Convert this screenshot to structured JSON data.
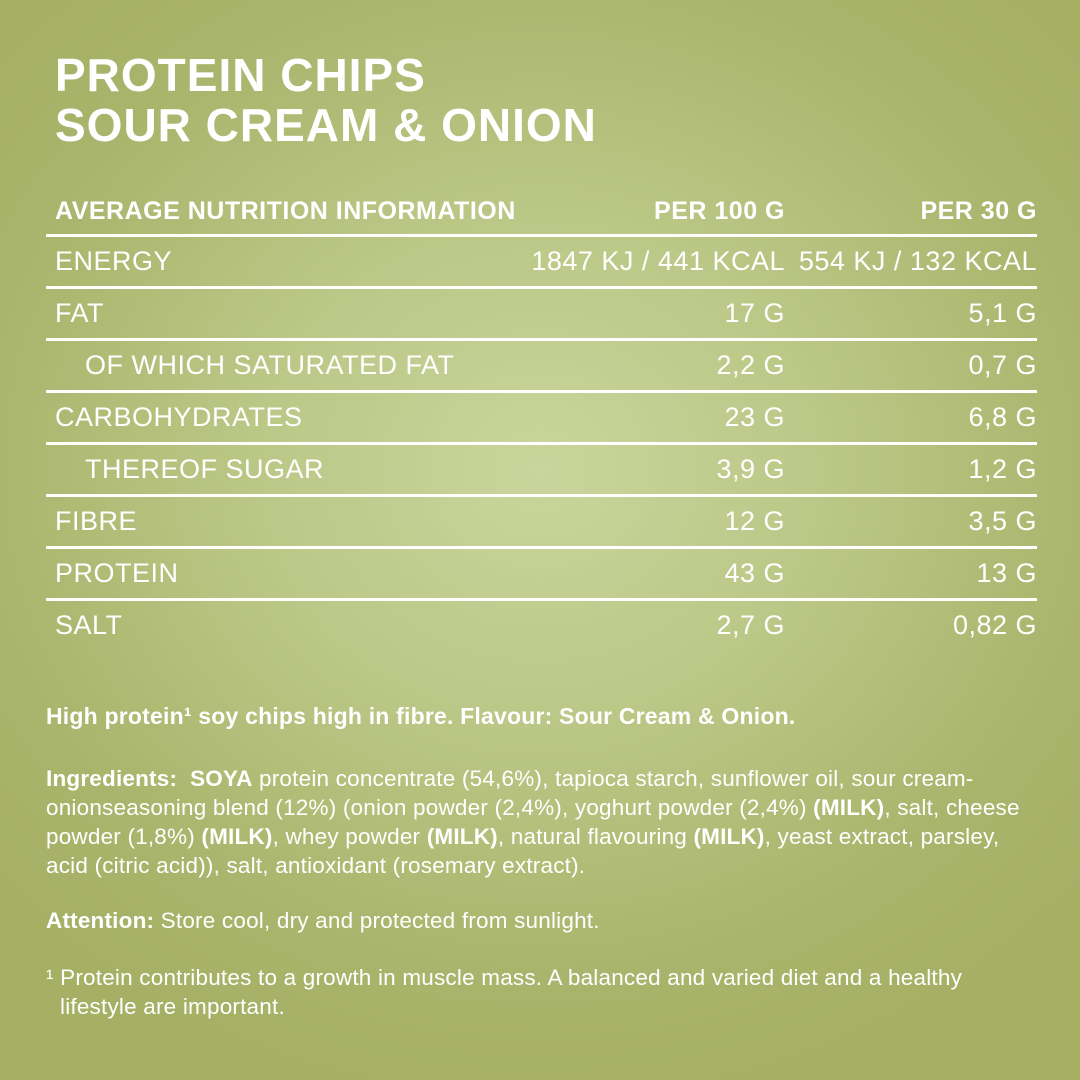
{
  "colors": {
    "background_edge": "#a5b065",
    "background_center": "#c9d59c",
    "text": "#ffffff",
    "divider": "#ffffff"
  },
  "title": {
    "line1": "PROTEIN CHIPS",
    "line2": "SOUR CREAM & ONION"
  },
  "nutrition_table": {
    "col_product": "AVERAGE NUTRITION INFORMATION",
    "col_per_100g": "PER 100 G",
    "col_per_30g": "PER 30 G",
    "rows": [
      {
        "label": "ENERGY",
        "per_100g": "1847 KJ / 441 KCAL",
        "per_30g": "554 KJ / 132 KCAL",
        "indent": false
      },
      {
        "label": "FAT",
        "per_100g": "17 G",
        "per_30g": "5,1 G",
        "indent": false
      },
      {
        "label": "OF WHICH SATURATED FAT",
        "per_100g": "2,2 G",
        "per_30g": "0,7 G",
        "indent": true
      },
      {
        "label": "CARBOHYDRATES",
        "per_100g": "23 G",
        "per_30g": "6,8 G",
        "indent": false
      },
      {
        "label": "THEREOF SUGAR",
        "per_100g": "3,9 G",
        "per_30g": "1,2 G",
        "indent": true
      },
      {
        "label": "FIBRE",
        "per_100g": "12 G",
        "per_30g": "3,5 G",
        "indent": false
      },
      {
        "label": "PROTEIN",
        "per_100g": "43 G",
        "per_30g": "13 G",
        "indent": false
      },
      {
        "label": "SALT",
        "per_100g": "2,7 G",
        "per_30g": "0,82 G",
        "indent": false
      }
    ]
  },
  "description": {
    "text": "High protein¹ soy chips high in fibre. Flavour: Sour Cream & Onion."
  },
  "ingredients": {
    "segments": [
      {
        "text": "Ingredients:",
        "bold": true
      },
      {
        "text": "  ",
        "bold": false
      },
      {
        "text": "SOYA",
        "bold": true
      },
      {
        "text": " protein concentrate (54,6%), tapioca starch, sunflower oil, sour cream-onionseasoning blend (12%) (onion powder (2,4%), yoghurt powder (2,4%) ",
        "bold": false
      },
      {
        "text": "(MILK)",
        "bold": true
      },
      {
        "text": ", salt, cheese powder (1,8%) ",
        "bold": false
      },
      {
        "text": "(MILK)",
        "bold": true
      },
      {
        "text": ", whey powder ",
        "bold": false
      },
      {
        "text": "(MILK)",
        "bold": true
      },
      {
        "text": ", natural flavouring ",
        "bold": false
      },
      {
        "text": "(MILK)",
        "bold": true
      },
      {
        "text": ", yeast extract, parsley, acid (citric acid)), salt, antioxidant (rosemary extract).",
        "bold": false
      }
    ]
  },
  "attention": {
    "label": "Attention:",
    "text": " Store cool, dry and protected from sunlight."
  },
  "footnote": {
    "text": "¹ Protein contributes to a growth in muscle mass. A balanced and varied diet and a healthy lifestyle are important."
  }
}
